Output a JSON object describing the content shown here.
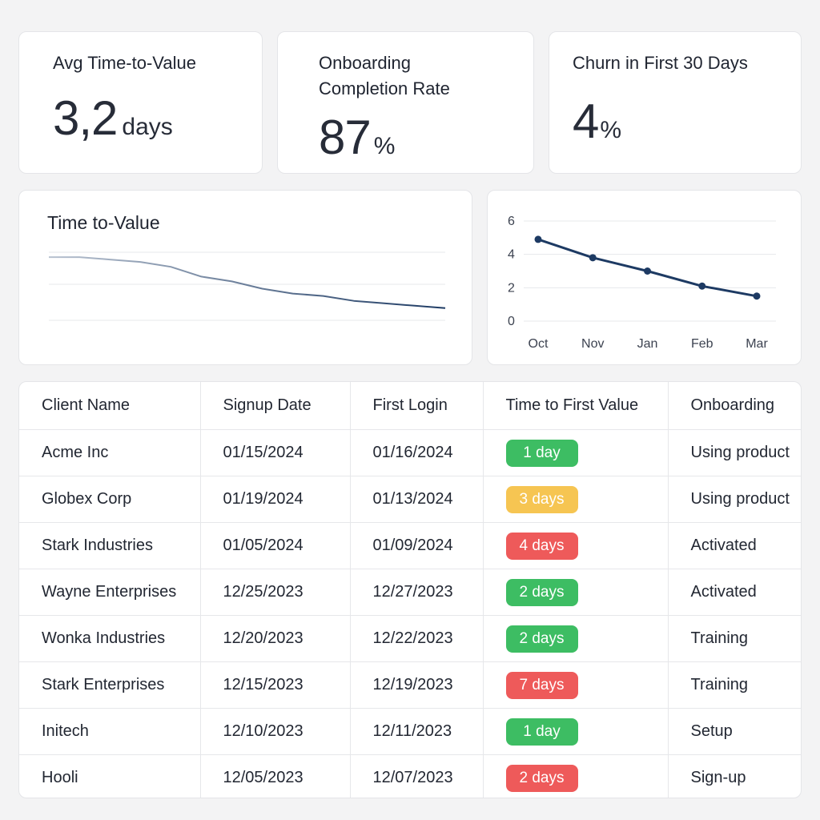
{
  "kpis": [
    {
      "title": "Avg Time-to-Value",
      "value": "3,2",
      "unit": "days"
    },
    {
      "title": "Onboarding Completion Rate",
      "value": "87",
      "unit": "%"
    },
    {
      "title": "Churn in First 30 Days",
      "value": "4",
      "unit": "%"
    }
  ],
  "charts": {
    "trend": {
      "title": "Time to-Value"
    }
  },
  "chart_data": [
    {
      "type": "line",
      "title": "Time to-Value",
      "x": [
        1,
        2,
        3,
        4,
        5,
        6,
        7,
        8,
        9,
        10,
        11,
        12,
        13,
        14
      ],
      "series": [
        {
          "values": [
            5.8,
            5.8,
            5.7,
            5.6,
            5.4,
            5.0,
            4.8,
            4.5,
            4.3,
            4.2,
            4.0,
            3.9,
            3.8,
            3.7
          ]
        }
      ],
      "ylim": [
        3.2,
        6.0
      ],
      "grid": true,
      "colors": {
        "start": "#b8c2d0",
        "end": "#1d3a63"
      }
    },
    {
      "type": "line",
      "categories": [
        "Oct",
        "Nov",
        "Jan",
        "Feb",
        "Mar"
      ],
      "series": [
        {
          "values": [
            4.9,
            3.8,
            3.0,
            2.1,
            1.5
          ]
        }
      ],
      "yticks": [
        0,
        2,
        4,
        6
      ],
      "ylim": [
        0,
        6
      ],
      "grid": true,
      "color": "#1d3a63"
    }
  ],
  "table": {
    "columns": [
      "Client Name",
      "Signup Date",
      "First Login",
      "Time to First Value",
      "Onboarding"
    ],
    "rows": [
      {
        "client": "Acme Inc",
        "signup": "01/15/2024",
        "first_login": "01/16/2024",
        "ttfv": "1 day",
        "status": "green",
        "onboarding": "Using product"
      },
      {
        "client": "Globex Corp",
        "signup": "01/19/2024",
        "first_login": "01/13/2024",
        "ttfv": "3 days",
        "status": "yellow",
        "onboarding": "Using product"
      },
      {
        "client": "Stark Industries",
        "signup": "01/05/2024",
        "first_login": "01/09/2024",
        "ttfv": "4 days",
        "status": "red",
        "onboarding": "Activated"
      },
      {
        "client": "Wayne Enterprises",
        "signup": "12/25/2023",
        "first_login": "12/27/2023",
        "ttfv": "2 days",
        "status": "green",
        "onboarding": "Activated"
      },
      {
        "client": "Wonka Industries",
        "signup": "12/20/2023",
        "first_login": "12/22/2023",
        "ttfv": "2 days",
        "status": "green",
        "onboarding": "Training"
      },
      {
        "client": "Stark Enterprises",
        "signup": "12/15/2023",
        "first_login": "12/19/2023",
        "ttfv": "7 days",
        "status": "red",
        "onboarding": "Training"
      },
      {
        "client": "Initech",
        "signup": "12/10/2023",
        "first_login": "12/11/2023",
        "ttfv": "1 day",
        "status": "green",
        "onboarding": "Setup"
      },
      {
        "client": "Hooli",
        "signup": "12/05/2023",
        "first_login": "12/07/2023",
        "ttfv": "2 days",
        "status": "red",
        "onboarding": "Sign-up"
      }
    ]
  },
  "status_colors": {
    "green": "#3dbd63",
    "yellow": "#f6c552",
    "red": "#ee5a5a"
  }
}
